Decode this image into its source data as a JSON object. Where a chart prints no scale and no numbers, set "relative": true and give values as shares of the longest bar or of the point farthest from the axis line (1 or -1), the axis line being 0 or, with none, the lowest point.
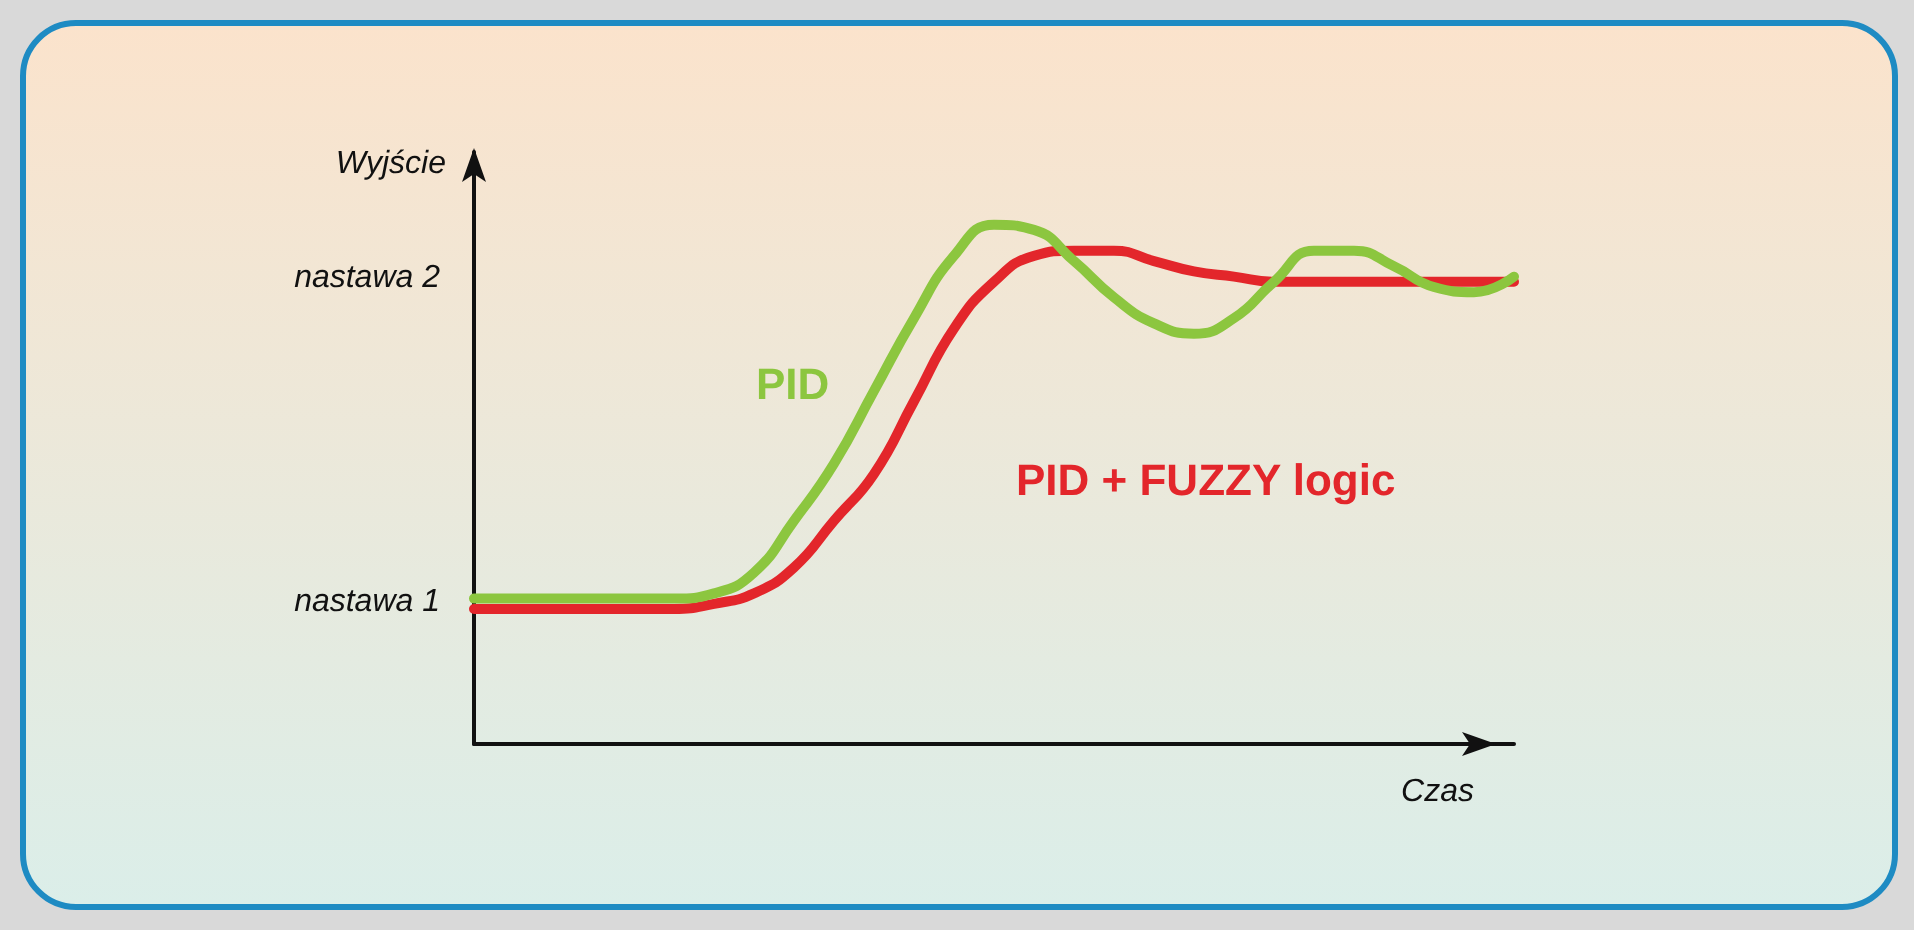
{
  "chart_data": {
    "type": "line",
    "xlabel": "Czas",
    "ylabel": "Wyjście",
    "relative": true,
    "categories": [
      null,
      null,
      null,
      null,
      null,
      null,
      null,
      null,
      null,
      null,
      null,
      null,
      null,
      null,
      null,
      null,
      null,
      null,
      null,
      null,
      null,
      null,
      null,
      null,
      null,
      null,
      null
    ],
    "series": [
      {
        "name": "PID + FUZZY logic",
        "color": "#e3262b",
        "values": [
          0.26,
          0.26,
          0.26,
          0.26,
          0.26,
          0.26,
          0.27,
          0.29,
          0.34,
          0.43,
          0.52,
          0.66,
          0.8,
          0.89,
          0.94,
          0.95,
          0.95,
          0.93,
          0.91,
          0.9,
          0.89,
          0.89,
          0.89,
          0.89,
          0.89,
          0.89,
          0.89
        ]
      },
      {
        "name": "PID",
        "color": "#8cc63f",
        "values": [
          0.28,
          0.28,
          0.28,
          0.28,
          0.28,
          0.28,
          0.29,
          0.33,
          0.43,
          0.54,
          0.68,
          0.82,
          0.94,
          1.0,
          0.99,
          0.93,
          0.86,
          0.81,
          0.79,
          0.82,
          0.89,
          0.95,
          0.95,
          0.92,
          0.88,
          0.87,
          0.9
        ]
      }
    ],
    "annotations": [
      "nastawa 1",
      "nastawa 2"
    ],
    "marker": "none",
    "line_style": "solid",
    "legend": false,
    "grid": false
  }
}
